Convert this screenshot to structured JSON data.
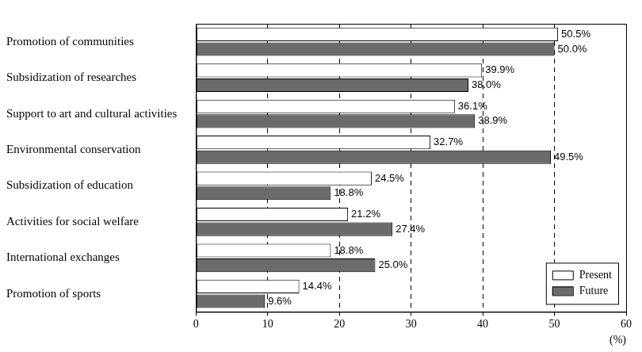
{
  "chart_data": {
    "type": "bar",
    "orientation": "horizontal",
    "categories": [
      "Promotion of communities",
      "Subsidization of researches",
      "Support to art and cultural activities",
      "Environmental conservation",
      "Subsidization of education",
      "Activities for social welfare",
      "International exchanges",
      "Promotion of sports"
    ],
    "series": [
      {
        "name": "Present",
        "color": "#ffffff",
        "values": [
          50.5,
          39.9,
          36.1,
          32.7,
          24.5,
          21.2,
          18.8,
          14.4
        ],
        "value_labels": [
          "50.5%",
          "39.9%",
          "36.1%",
          "32.7%",
          "24.5%",
          "21.2%",
          "18.8%",
          "14.4%"
        ]
      },
      {
        "name": "Future",
        "color": "#6b6b6b",
        "values": [
          50.0,
          38.0,
          38.9,
          49.5,
          18.8,
          27.4,
          25.0,
          9.6
        ],
        "value_labels": [
          "50.0%",
          "38.0%",
          "38.9%",
          "49.5%",
          "18.8%",
          "27.4%",
          "25.0%",
          "9.6%"
        ]
      }
    ],
    "x_label": "(%)",
    "xlim": [
      0,
      60
    ],
    "xticks": [
      0,
      10,
      20,
      30,
      40,
      50,
      60
    ],
    "grid": true,
    "legend": "bottom right",
    "data_labels": true
  }
}
